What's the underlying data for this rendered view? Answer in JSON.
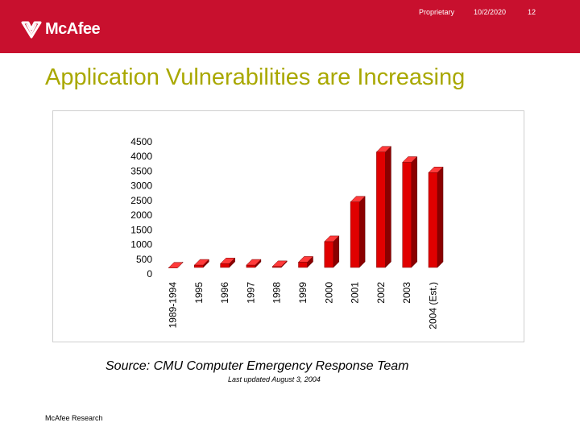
{
  "header": {
    "logo_text": "McAfee",
    "proprietary": "Proprietary",
    "date": "10/2/2020",
    "page_number": "12",
    "background_color": "#c8102e"
  },
  "slide": {
    "title": "Application Vulnerabilities are Increasing",
    "title_color": "#a9a800",
    "source": "Source:  CMU Computer Emergency Response Team",
    "updated": "Last updated August 3, 2004",
    "footer": "McAfee Research"
  },
  "chart_data": {
    "type": "bar",
    "style": "3d",
    "bar_color": "#e00000",
    "categories": [
      "1989-1994",
      "1995",
      "1996",
      "1997",
      "1998",
      "1999",
      "2000",
      "2001",
      "2002",
      "2003",
      "2004 (Est.)"
    ],
    "values": [
      200,
      300,
      350,
      300,
      250,
      400,
      1100,
      2450,
      4150,
      3800,
      3450
    ],
    "ylim": [
      0,
      4500
    ],
    "yticks": [
      "0",
      "500",
      "1000",
      "1500",
      "2000",
      "2500",
      "3000",
      "3500",
      "4000",
      "4500"
    ],
    "grid": false,
    "legend": "none"
  }
}
